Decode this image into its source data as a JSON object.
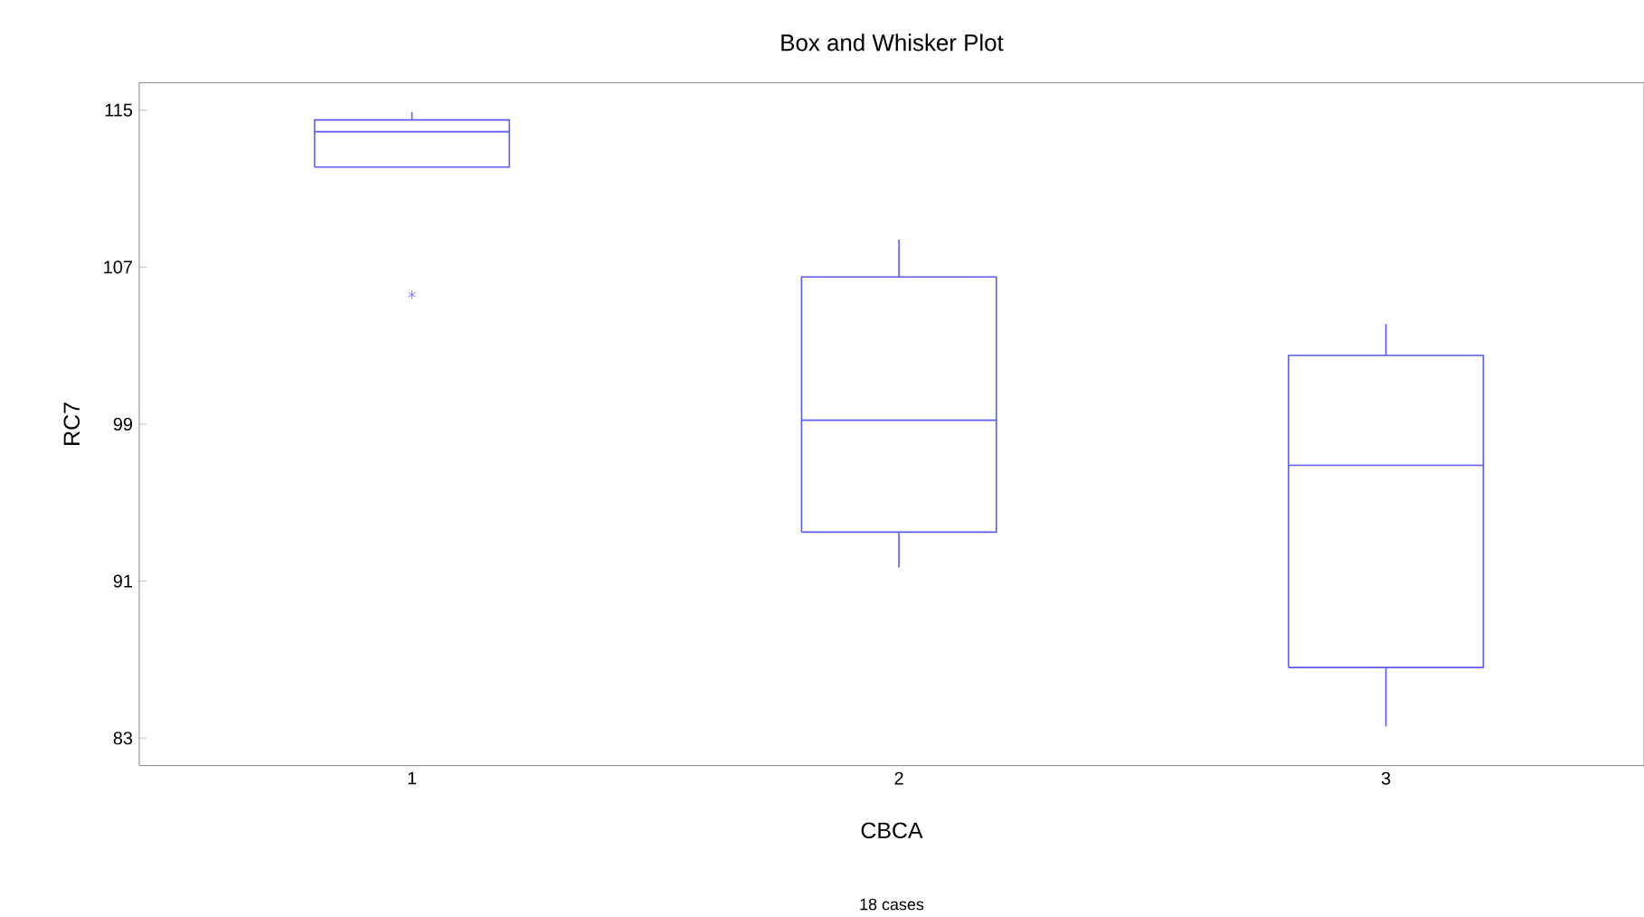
{
  "chart_data": {
    "type": "box",
    "title": "Box and Whisker Plot",
    "xlabel": "CBCA",
    "ylabel": "RC7",
    "categories": [
      "1",
      "2",
      "3"
    ],
    "boxes": [
      {
        "low": 112.1,
        "q1": 112.1,
        "median": 113.9,
        "q3": 114.5,
        "high": 114.9,
        "outliers": [
          105.6
        ]
      },
      {
        "low": 91.7,
        "q1": 93.5,
        "median": 99.2,
        "q3": 106.5,
        "high": 108.4
      },
      {
        "low": 83.6,
        "q1": 86.6,
        "median": 96.9,
        "q3": 102.5,
        "high": 104.1
      }
    ],
    "color": "#5a5aff",
    "marker": "star",
    "ylim": [
      81.6,
      116.4
    ],
    "yticks": [
      83,
      91,
      99,
      107,
      115
    ],
    "grid": false,
    "annotations": [
      "18 cases"
    ]
  }
}
